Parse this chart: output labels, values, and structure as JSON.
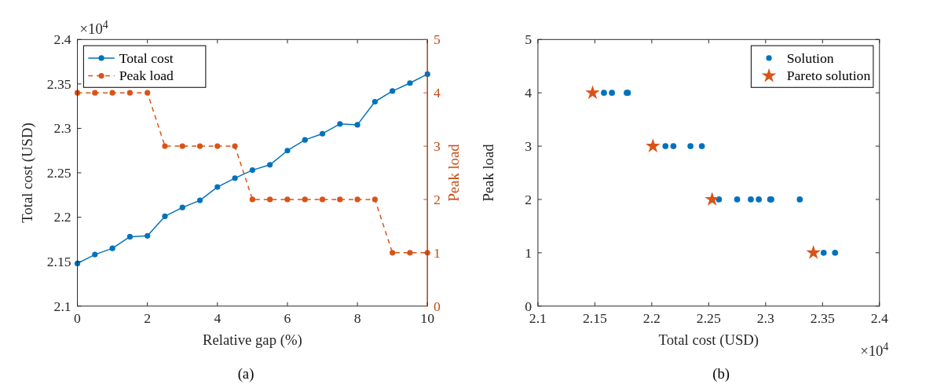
{
  "chart_data": [
    {
      "type": "line",
      "xlabel": "Relative gap (%)",
      "ylabel": "Total cost (USD)",
      "y2label": "Peak load",
      "x": [
        0,
        0.5,
        1,
        1.5,
        2,
        2.5,
        3,
        3.5,
        4,
        4.5,
        5,
        5.5,
        6,
        6.5,
        7,
        7.5,
        8,
        8.5,
        9,
        9.5,
        10
      ],
      "series": [
        {
          "name": "Total cost",
          "color": "#0072bd",
          "line_style": "solid",
          "values": [
            2.148,
            2.158,
            2.165,
            2.178,
            2.179,
            2.201,
            2.211,
            2.219,
            2.234,
            2.244,
            2.253,
            2.259,
            2.275,
            2.287,
            2.294,
            2.305,
            2.304,
            2.33,
            2.342,
            2.351,
            2.361
          ]
        },
        {
          "name": "Peak load",
          "color": "#d95319",
          "line_style": "dashed",
          "axis": "y2",
          "values": [
            4,
            4,
            4,
            4,
            4,
            3,
            3,
            3,
            3,
            3,
            2,
            2,
            2,
            2,
            2,
            2,
            2,
            2,
            1,
            1,
            1
          ]
        }
      ],
      "marker": "circle",
      "xlim": [
        0,
        10
      ],
      "xticks": [
        0,
        2,
        4,
        6,
        8,
        10
      ],
      "ylim": [
        2.1,
        2.4
      ],
      "yticks": [
        2.1,
        2.15,
        2.2,
        2.25,
        2.3,
        2.35,
        2.4
      ],
      "y2lim": [
        0,
        5
      ],
      "y2ticks": [
        0,
        1,
        2,
        3,
        4,
        5
      ],
      "grid": false,
      "legend": "top left",
      "annotations": [
        "×10$^{4}$",
        "(a)"
      ]
    },
    {
      "type": "scatter",
      "xlabel": "Total cost (USD)",
      "ylabel": "Peak load",
      "series": [
        {
          "name": "Solution",
          "color": "#0072bd",
          "marker": "circle",
          "x": [
            2.158,
            2.165,
            2.178,
            2.179,
            2.212,
            2.219,
            2.234,
            2.244,
            2.259,
            2.275,
            2.287,
            2.294,
            2.305,
            2.304,
            2.33,
            2.351,
            2.361
          ],
          "values": [
            4,
            4,
            4,
            4,
            3,
            3,
            3,
            3,
            2,
            2,
            2,
            2,
            2,
            2,
            2,
            1,
            1
          ]
        },
        {
          "name": "Pareto solution",
          "color": "#d95319",
          "marker": "star",
          "x": [
            2.148,
            2.201,
            2.253,
            2.342
          ],
          "values": [
            4,
            3,
            2,
            1
          ]
        }
      ],
      "xlim": [
        2.1,
        2.4
      ],
      "xticks": [
        2.1,
        2.15,
        2.2,
        2.25,
        2.3,
        2.35,
        2.4
      ],
      "ylim": [
        0,
        5
      ],
      "yticks": [
        0,
        1,
        2,
        3,
        4,
        5
      ],
      "grid": false,
      "legend": "top right",
      "annotations": [
        "×10$^{4}$",
        "(b)"
      ]
    }
  ]
}
